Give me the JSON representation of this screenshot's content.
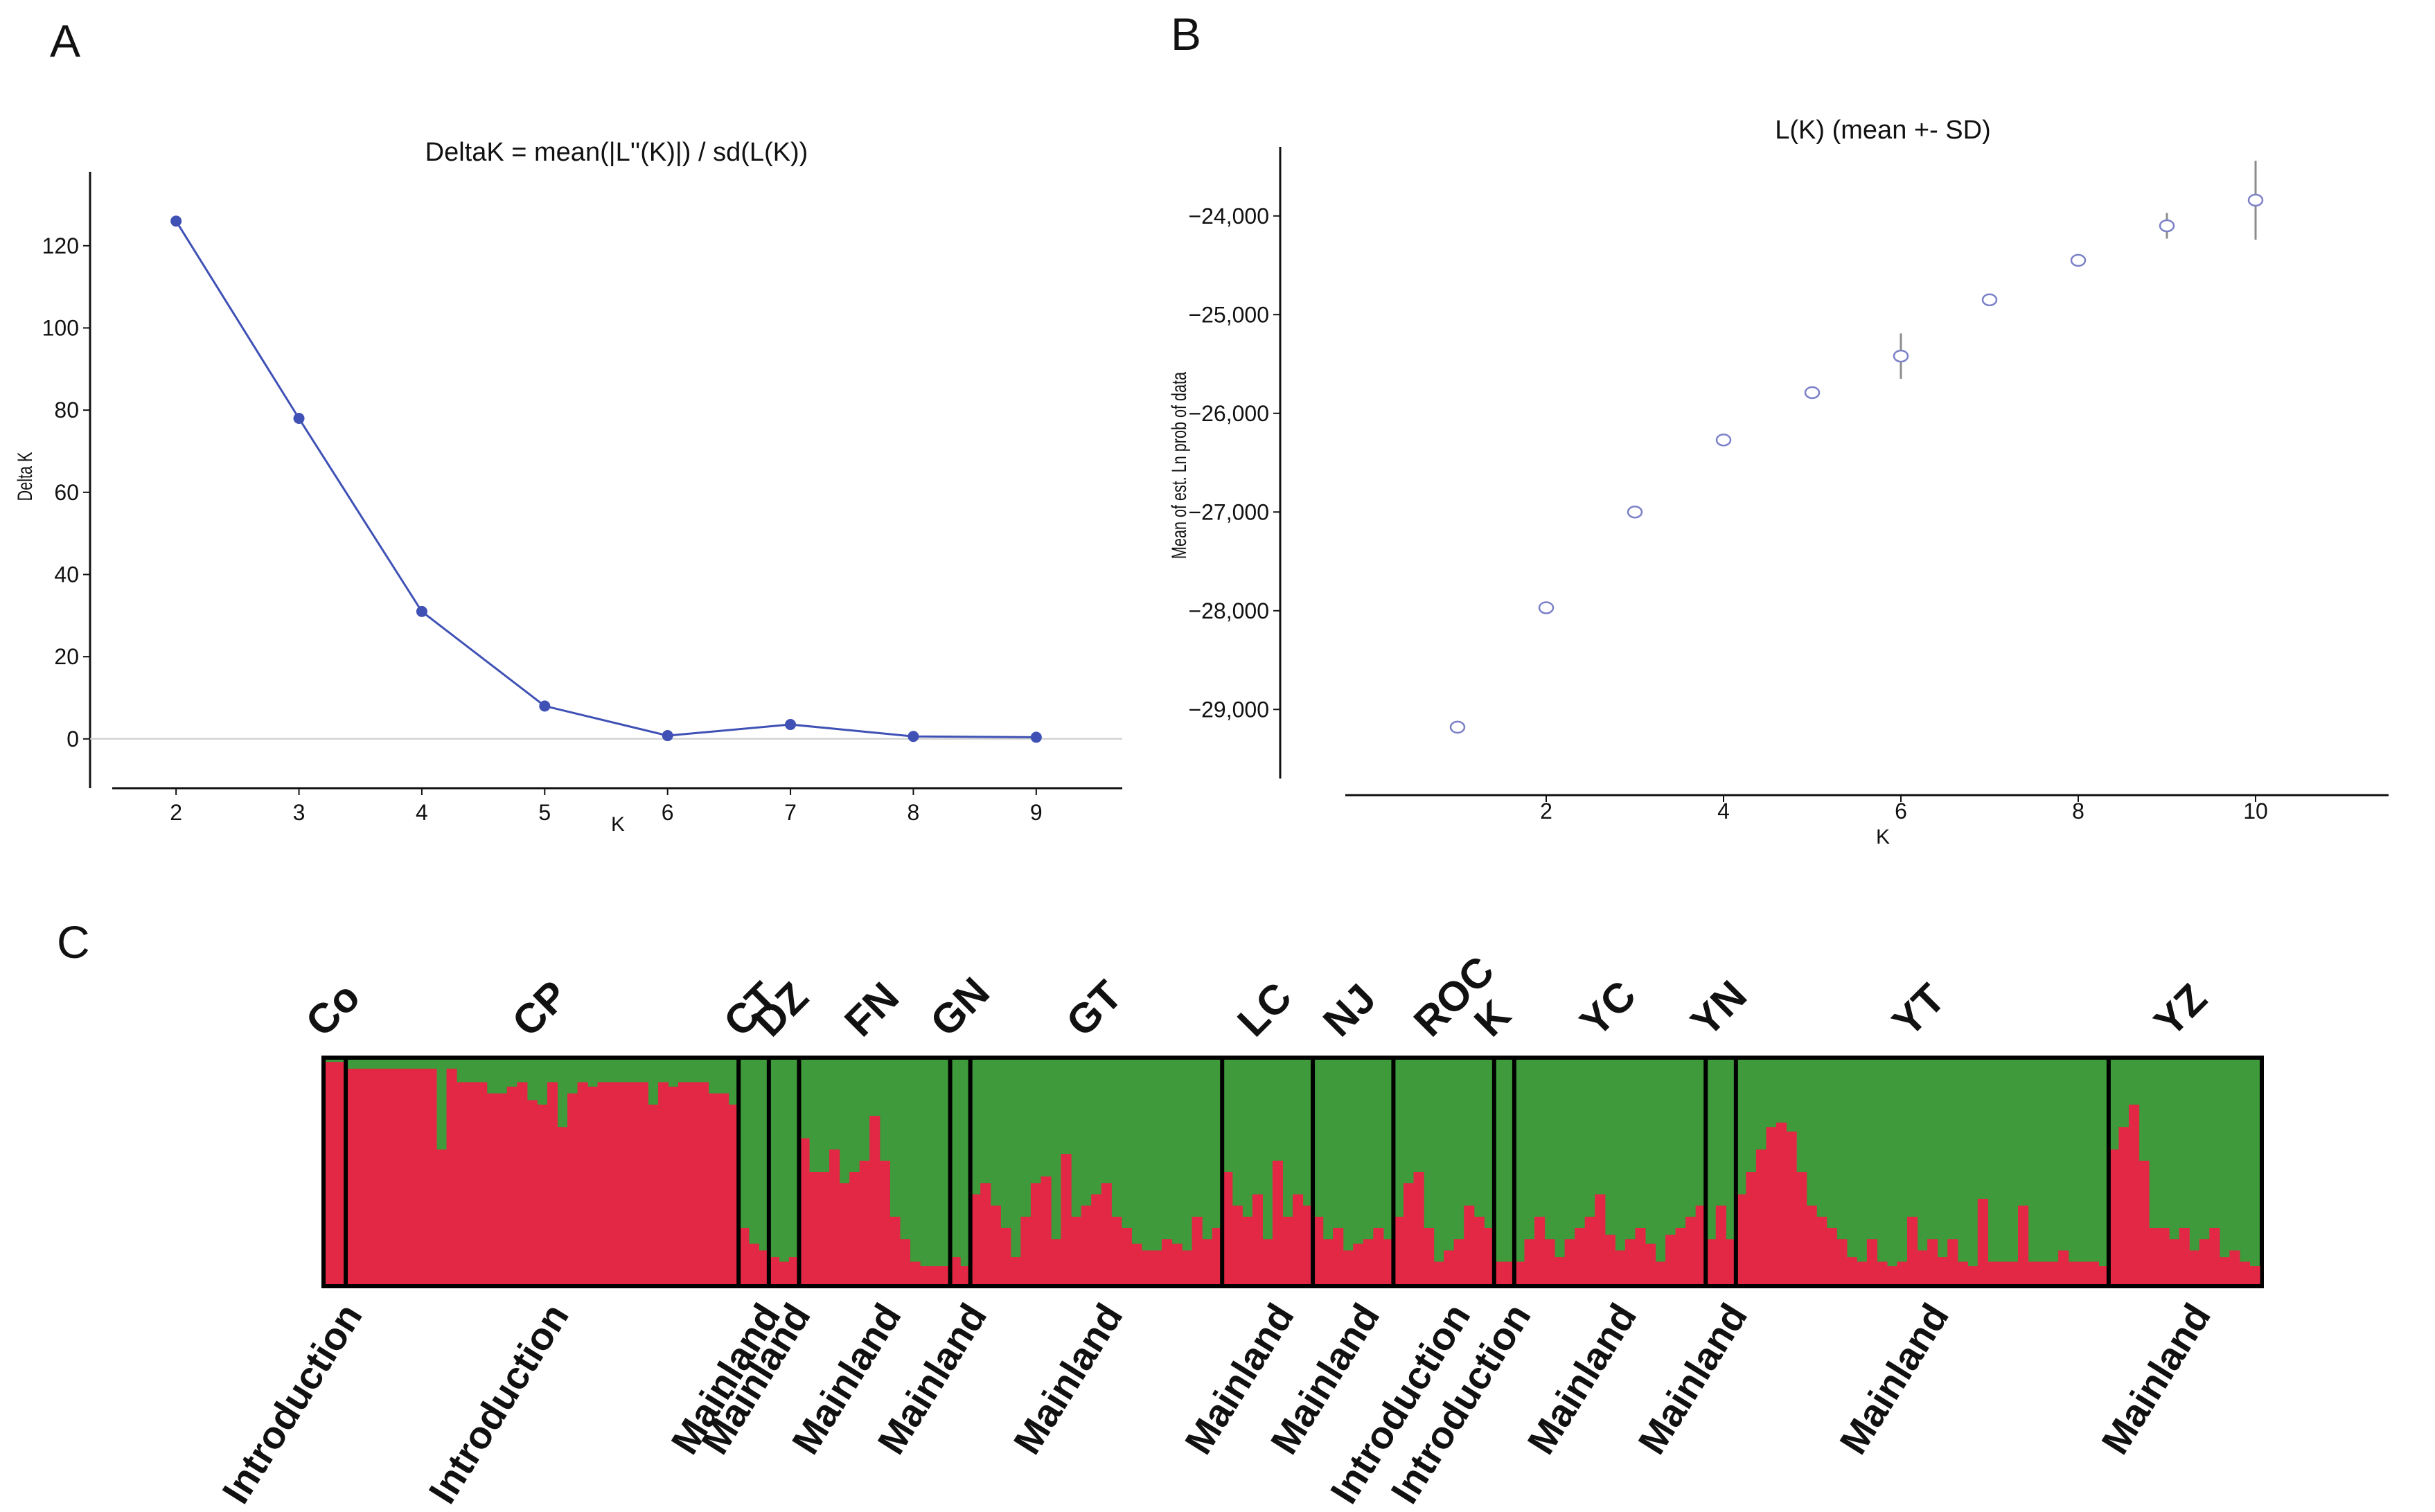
{
  "panels": {
    "a": "A",
    "b": "B",
    "c": "C"
  },
  "colors": {
    "line": "#3f51b5",
    "open_marker": "#7b80c8",
    "cluster1": "#e32845",
    "cluster2": "#3e9a3b",
    "axis": "#111111"
  },
  "chart_data": [
    {
      "type": "line",
      "title": "DeltaK = mean(|L''(K)|) / sd(L(K))",
      "xlabel": "K",
      "ylabel": "Delta K",
      "x": [
        2,
        3,
        4,
        5,
        6,
        7,
        8,
        9
      ],
      "y": [
        126,
        78,
        31,
        8,
        0.8,
        3.5,
        0.6,
        0.4
      ],
      "xlim": [
        1.3,
        9.7
      ],
      "ylim": [
        -12,
        138
      ],
      "xticks": [
        2,
        3,
        4,
        5,
        6,
        7,
        8,
        9
      ],
      "yticks": [
        0,
        20,
        40,
        60,
        80,
        100,
        120
      ],
      "grid": false
    },
    {
      "type": "scatter",
      "title": "L(K) (mean +- SD)",
      "xlabel": "K",
      "ylabel": "Mean of est. Ln prob of data",
      "x": [
        1,
        2,
        3,
        4,
        5,
        6,
        7,
        8,
        9,
        10
      ],
      "y": [
        -29180,
        -27970,
        -27000,
        -26270,
        -25790,
        -25420,
        -24850,
        -24450,
        -24100,
        -23840
      ],
      "sd": [
        20,
        20,
        20,
        25,
        25,
        230,
        30,
        25,
        130,
        400
      ],
      "xlim": [
        -1,
        11.5
      ],
      "ylim": [
        -29700,
        -23300
      ],
      "xticks": [
        2,
        4,
        6,
        8,
        10
      ],
      "yticks": [
        -29000,
        -28000,
        -27000,
        -26000,
        -25000,
        -24000
      ],
      "ytick_labels": [
        "−29,000",
        "−28,000",
        "−27,000",
        "−26,000",
        "−25,000",
        "−24,000"
      ],
      "grid": false
    },
    {
      "type": "bar",
      "description": "STRUCTURE admixture proportions (K=2), stacked per individual",
      "series": [
        {
          "name": "",
          "color": "#e32845"
        },
        {
          "name": "",
          "color": "#3e9a3b"
        }
      ],
      "populations": [
        {
          "name": "Co",
          "origin": "Introduction",
          "q1": [
            0.99,
            0.99
          ]
        },
        {
          "name": "CP",
          "origin": "Introduction",
          "q1": [
            0.96,
            0.96,
            0.96,
            0.96,
            0.96,
            0.96,
            0.96,
            0.96,
            0.96,
            0.6,
            0.96,
            0.9,
            0.9,
            0.9,
            0.85,
            0.85,
            0.88,
            0.9,
            0.82,
            0.8,
            0.9,
            0.7,
            0.85,
            0.9,
            0.88,
            0.9,
            0.9,
            0.9,
            0.9,
            0.9,
            0.8,
            0.9,
            0.88,
            0.9,
            0.9,
            0.9,
            0.85,
            0.85,
            0.8
          ]
        },
        {
          "name": "CT",
          "origin": "Mainland",
          "q1": [
            0.25,
            0.18,
            0.15
          ]
        },
        {
          "name": "DZ",
          "origin": "Mainland",
          "q1": [
            0.12,
            0.1,
            0.12
          ]
        },
        {
          "name": "FN",
          "origin": "Mainland",
          "q1": [
            0.65,
            0.5,
            0.5,
            0.6,
            0.45,
            0.5,
            0.55,
            0.75,
            0.55,
            0.3,
            0.2,
            0.1,
            0.08,
            0.08,
            0.08
          ]
        },
        {
          "name": "GN",
          "origin": "Mainland",
          "q1": [
            0.12,
            0.08
          ]
        },
        {
          "name": "GT",
          "origin": "Mainland",
          "q1": [
            0.4,
            0.45,
            0.35,
            0.25,
            0.12,
            0.3,
            0.45,
            0.48,
            0.2,
            0.58,
            0.3,
            0.35,
            0.4,
            0.45,
            0.3,
            0.25,
            0.18,
            0.15,
            0.15,
            0.2,
            0.18,
            0.15,
            0.3,
            0.2,
            0.25
          ]
        },
        {
          "name": "LC",
          "origin": "Mainland",
          "q1": [
            0.5,
            0.35,
            0.3,
            0.4,
            0.2,
            0.55,
            0.3,
            0.4,
            0.35
          ]
        },
        {
          "name": "NJ",
          "origin": "Mainland",
          "q1": [
            0.3,
            0.2,
            0.25,
            0.15,
            0.18,
            0.2,
            0.25,
            0.2
          ]
        },
        {
          "name": "ROC",
          "origin": "Introduction",
          "q1": [
            0.3,
            0.45,
            0.5,
            0.25,
            0.1,
            0.15,
            0.2,
            0.35,
            0.3,
            0.25
          ]
        },
        {
          "name": "K",
          "origin": "Introduction",
          "q1": [
            0.1,
            0.1
          ]
        },
        {
          "name": "YC",
          "origin": "Mainland",
          "q1": [
            0.1,
            0.2,
            0.3,
            0.2,
            0.12,
            0.2,
            0.25,
            0.3,
            0.4,
            0.22,
            0.15,
            0.2,
            0.25,
            0.18,
            0.1,
            0.22,
            0.25,
            0.3,
            0.35
          ]
        },
        {
          "name": "YN",
          "origin": "Mainland",
          "q1": [
            0.2,
            0.35,
            0.2
          ]
        },
        {
          "name": "YT",
          "origin": "Mainland",
          "q1": [
            0.4,
            0.5,
            0.6,
            0.7,
            0.72,
            0.68,
            0.5,
            0.35,
            0.3,
            0.25,
            0.2,
            0.12,
            0.1,
            0.2,
            0.1,
            0.08,
            0.1,
            0.3,
            0.15,
            0.2,
            0.12,
            0.2,
            0.1,
            0.08,
            0.38,
            0.1,
            0.1,
            0.1,
            0.35,
            0.1,
            0.1,
            0.1,
            0.15,
            0.1,
            0.1,
            0.1,
            0.08
          ]
        },
        {
          "name": "YZ",
          "origin": "Mainland",
          "q1": [
            0.6,
            0.7,
            0.8,
            0.55,
            0.25,
            0.25,
            0.2,
            0.25,
            0.15,
            0.2,
            0.25,
            0.12,
            0.15,
            0.1,
            0.08
          ]
        }
      ],
      "grid": false
    }
  ]
}
